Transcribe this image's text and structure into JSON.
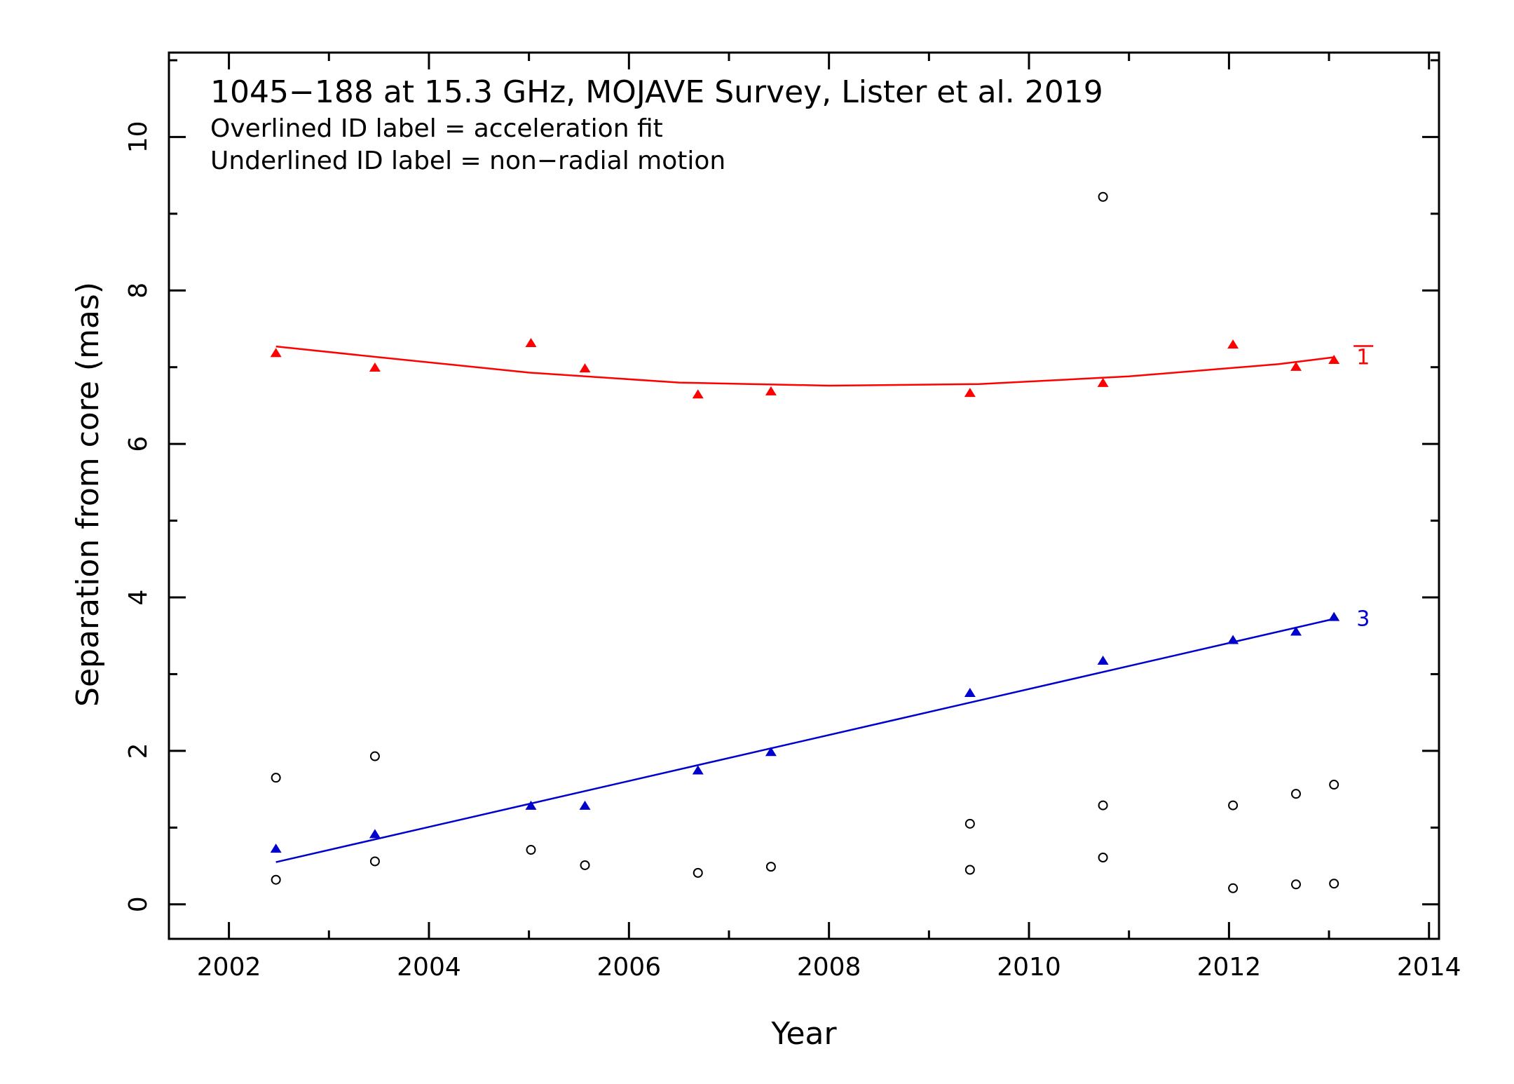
{
  "chart_data": {
    "type": "scatter",
    "title": "1045−188 at 15.3 GHz, MOJAVE Survey, Lister et al. 2019",
    "notes": [
      "Overlined ID label = acceleration fit",
      "Underlined ID label = non−radial motion"
    ],
    "xlabel": "Year",
    "ylabel": "Separation from core (mas)",
    "xlim": [
      2001.4,
      2014.1
    ],
    "ylim": [
      -0.45,
      11.1
    ],
    "xticks": [
      2002,
      2004,
      2006,
      2008,
      2010,
      2012,
      2014
    ],
    "yticks": [
      0,
      2,
      4,
      6,
      8,
      10
    ],
    "grid": false,
    "series": [
      {
        "name": "1",
        "color": "#ff0000",
        "marker": "triangle",
        "label_decoration": "overline",
        "x": [
          2002.47,
          2003.46,
          2005.02,
          2005.56,
          2006.69,
          2007.42,
          2009.41,
          2010.74,
          2012.04,
          2012.67,
          2013.05
        ],
        "y": [
          7.18,
          6.99,
          7.31,
          6.98,
          6.64,
          6.68,
          6.66,
          6.79,
          7.29,
          7.0,
          7.09
        ],
        "fit": {
          "type": "quadratic",
          "x": [
            2002.47,
            2003.5,
            2005.0,
            2006.5,
            2008.0,
            2009.5,
            2011.0,
            2012.5,
            2013.05
          ],
          "y": [
            7.27,
            7.13,
            6.93,
            6.8,
            6.76,
            6.78,
            6.88,
            7.04,
            7.13
          ]
        }
      },
      {
        "name": "3",
        "color": "#0000cc",
        "marker": "triangle",
        "label_decoration": "none",
        "x": [
          2002.47,
          2003.46,
          2005.02,
          2005.56,
          2006.69,
          2007.42,
          2009.41,
          2010.74,
          2012.04,
          2012.67,
          2013.05
        ],
        "y": [
          0.72,
          0.91,
          1.28,
          1.28,
          1.74,
          1.98,
          2.75,
          3.17,
          3.44,
          3.55,
          3.74
        ],
        "fit": {
          "type": "linear",
          "x": [
            2002.47,
            2013.05
          ],
          "y": [
            0.55,
            3.72
          ]
        }
      },
      {
        "name": "",
        "color": "#000000",
        "marker": "circle-open",
        "x": [
          2002.47,
          2002.47,
          2003.46,
          2003.46,
          2005.02,
          2005.56,
          2006.69,
          2007.42,
          2009.41,
          2009.41,
          2010.74,
          2010.74,
          2010.74,
          2012.04,
          2012.04,
          2012.67,
          2012.67,
          2013.05,
          2013.05
        ],
        "y": [
          1.65,
          0.32,
          1.93,
          0.56,
          0.71,
          0.51,
          0.41,
          0.49,
          1.05,
          0.45,
          9.22,
          1.29,
          0.61,
          1.29,
          0.21,
          1.44,
          0.26,
          1.56,
          0.27
        ]
      }
    ]
  }
}
